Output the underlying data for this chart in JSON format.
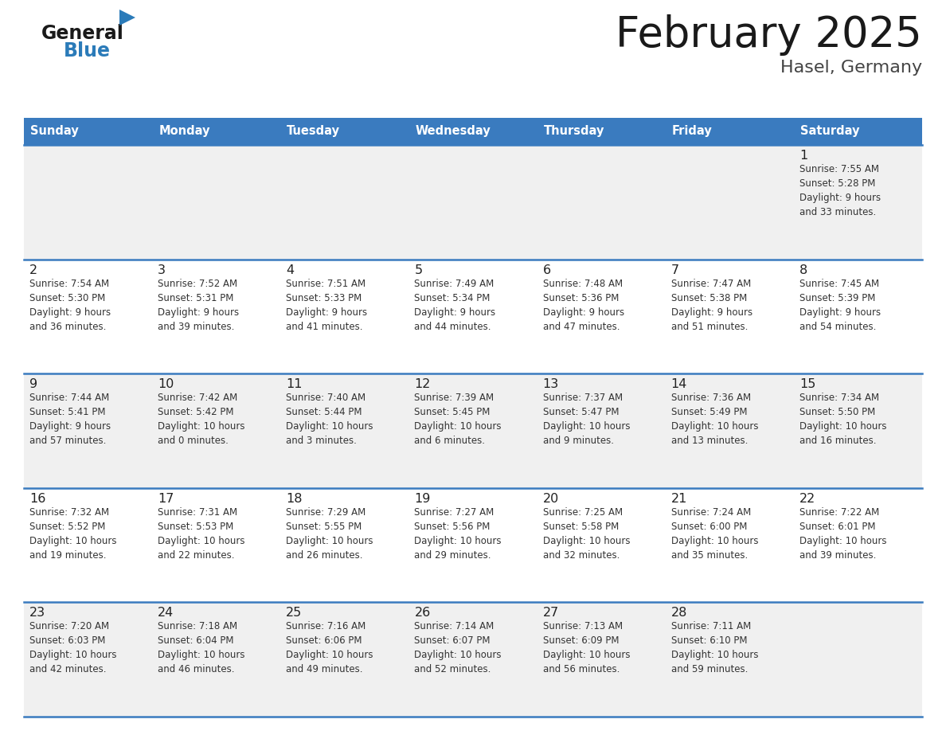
{
  "title": "February 2025",
  "subtitle": "Hasel, Germany",
  "days_of_week": [
    "Sunday",
    "Monday",
    "Tuesday",
    "Wednesday",
    "Thursday",
    "Friday",
    "Saturday"
  ],
  "header_bg": "#3A7BBF",
  "header_text": "#FFFFFF",
  "row_bg": [
    "#F0F0F0",
    "#FFFFFF",
    "#F0F0F0",
    "#FFFFFF",
    "#F0F0F0"
  ],
  "cell_text": "#333333",
  "day_num_color": "#222222",
  "border_color": "#3A7BBF",
  "title_color": "#1A1A1A",
  "subtitle_color": "#444444",
  "logo_general_color": "#1A1A1A",
  "logo_blue_color": "#2B7BB9",
  "weeks": [
    [
      {
        "day": null,
        "info": null
      },
      {
        "day": null,
        "info": null
      },
      {
        "day": null,
        "info": null
      },
      {
        "day": null,
        "info": null
      },
      {
        "day": null,
        "info": null
      },
      {
        "day": null,
        "info": null
      },
      {
        "day": 1,
        "info": "Sunrise: 7:55 AM\nSunset: 5:28 PM\nDaylight: 9 hours\nand 33 minutes."
      }
    ],
    [
      {
        "day": 2,
        "info": "Sunrise: 7:54 AM\nSunset: 5:30 PM\nDaylight: 9 hours\nand 36 minutes."
      },
      {
        "day": 3,
        "info": "Sunrise: 7:52 AM\nSunset: 5:31 PM\nDaylight: 9 hours\nand 39 minutes."
      },
      {
        "day": 4,
        "info": "Sunrise: 7:51 AM\nSunset: 5:33 PM\nDaylight: 9 hours\nand 41 minutes."
      },
      {
        "day": 5,
        "info": "Sunrise: 7:49 AM\nSunset: 5:34 PM\nDaylight: 9 hours\nand 44 minutes."
      },
      {
        "day": 6,
        "info": "Sunrise: 7:48 AM\nSunset: 5:36 PM\nDaylight: 9 hours\nand 47 minutes."
      },
      {
        "day": 7,
        "info": "Sunrise: 7:47 AM\nSunset: 5:38 PM\nDaylight: 9 hours\nand 51 minutes."
      },
      {
        "day": 8,
        "info": "Sunrise: 7:45 AM\nSunset: 5:39 PM\nDaylight: 9 hours\nand 54 minutes."
      }
    ],
    [
      {
        "day": 9,
        "info": "Sunrise: 7:44 AM\nSunset: 5:41 PM\nDaylight: 9 hours\nand 57 minutes."
      },
      {
        "day": 10,
        "info": "Sunrise: 7:42 AM\nSunset: 5:42 PM\nDaylight: 10 hours\nand 0 minutes."
      },
      {
        "day": 11,
        "info": "Sunrise: 7:40 AM\nSunset: 5:44 PM\nDaylight: 10 hours\nand 3 minutes."
      },
      {
        "day": 12,
        "info": "Sunrise: 7:39 AM\nSunset: 5:45 PM\nDaylight: 10 hours\nand 6 minutes."
      },
      {
        "day": 13,
        "info": "Sunrise: 7:37 AM\nSunset: 5:47 PM\nDaylight: 10 hours\nand 9 minutes."
      },
      {
        "day": 14,
        "info": "Sunrise: 7:36 AM\nSunset: 5:49 PM\nDaylight: 10 hours\nand 13 minutes."
      },
      {
        "day": 15,
        "info": "Sunrise: 7:34 AM\nSunset: 5:50 PM\nDaylight: 10 hours\nand 16 minutes."
      }
    ],
    [
      {
        "day": 16,
        "info": "Sunrise: 7:32 AM\nSunset: 5:52 PM\nDaylight: 10 hours\nand 19 minutes."
      },
      {
        "day": 17,
        "info": "Sunrise: 7:31 AM\nSunset: 5:53 PM\nDaylight: 10 hours\nand 22 minutes."
      },
      {
        "day": 18,
        "info": "Sunrise: 7:29 AM\nSunset: 5:55 PM\nDaylight: 10 hours\nand 26 minutes."
      },
      {
        "day": 19,
        "info": "Sunrise: 7:27 AM\nSunset: 5:56 PM\nDaylight: 10 hours\nand 29 minutes."
      },
      {
        "day": 20,
        "info": "Sunrise: 7:25 AM\nSunset: 5:58 PM\nDaylight: 10 hours\nand 32 minutes."
      },
      {
        "day": 21,
        "info": "Sunrise: 7:24 AM\nSunset: 6:00 PM\nDaylight: 10 hours\nand 35 minutes."
      },
      {
        "day": 22,
        "info": "Sunrise: 7:22 AM\nSunset: 6:01 PM\nDaylight: 10 hours\nand 39 minutes."
      }
    ],
    [
      {
        "day": 23,
        "info": "Sunrise: 7:20 AM\nSunset: 6:03 PM\nDaylight: 10 hours\nand 42 minutes."
      },
      {
        "day": 24,
        "info": "Sunrise: 7:18 AM\nSunset: 6:04 PM\nDaylight: 10 hours\nand 46 minutes."
      },
      {
        "day": 25,
        "info": "Sunrise: 7:16 AM\nSunset: 6:06 PM\nDaylight: 10 hours\nand 49 minutes."
      },
      {
        "day": 26,
        "info": "Sunrise: 7:14 AM\nSunset: 6:07 PM\nDaylight: 10 hours\nand 52 minutes."
      },
      {
        "day": 27,
        "info": "Sunrise: 7:13 AM\nSunset: 6:09 PM\nDaylight: 10 hours\nand 56 minutes."
      },
      {
        "day": 28,
        "info": "Sunrise: 7:11 AM\nSunset: 6:10 PM\nDaylight: 10 hours\nand 59 minutes."
      },
      {
        "day": null,
        "info": null
      }
    ]
  ]
}
